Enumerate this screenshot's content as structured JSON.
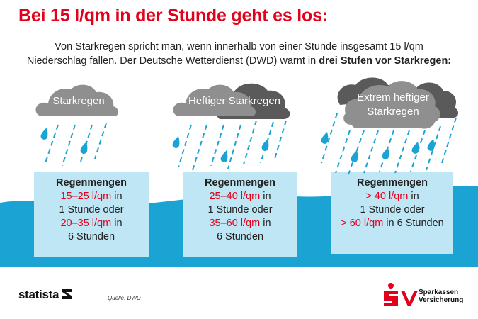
{
  "title": "Bei 15 l/qm in der Stunde geht es los:",
  "intro": {
    "line1": "Von Starkregen spricht man, wenn innerhalb von einer Stunde insgesamt 15 l/qm",
    "line2_start": "Niederschlag fallen. Der Deutsche Wetterdienst (DWD) warnt in ",
    "line2_bold": "drei Stufen vor Starkregen:"
  },
  "levels": [
    {
      "cloud_label": "Starkregen",
      "heading": "Regenmengen",
      "range1": "15–25 l/qm",
      "range1_suffix": " in",
      "line2": "1 Stunde oder",
      "range2": "20–35 l/qm",
      "range2_suffix": " in",
      "line4": "6 Stunden"
    },
    {
      "cloud_label": "Heftiger Starkregen",
      "heading": "Regenmengen",
      "range1": "25–40 l/qm",
      "range1_suffix": " in",
      "line2": "1 Stunde oder",
      "range2": "35–60 l/qm",
      "range2_suffix": " in",
      "line4": "6 Stunden"
    },
    {
      "cloud_label_line1": "Extrem heftiger",
      "cloud_label_line2": "Starkregen",
      "heading": "Regenmengen",
      "range1": "> 40 l/qm",
      "range1_suffix": " in",
      "line2": "1 Stunde oder",
      "range2": "> 60 l/qm",
      "range2_suffix": " in 6 Stunden"
    }
  ],
  "footer": {
    "brand": "statista",
    "source": "Quelle: DWD",
    "insurer_line1": "Sparkassen",
    "insurer_line2": "Versicherung"
  },
  "colors": {
    "accent_red": "#e2001a",
    "water": "#1aa3d3",
    "box": "#bfe6f4",
    "cloud_light": "#8f8f8f",
    "cloud_dark": "#5a5a5a",
    "rain": "#1aa3d3"
  }
}
